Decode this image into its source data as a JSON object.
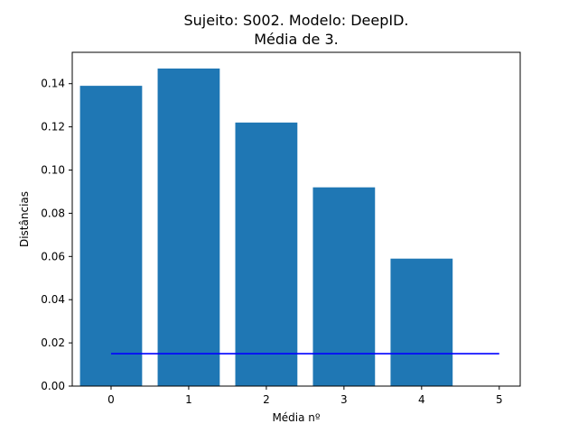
{
  "chart_data": {
    "type": "bar",
    "title_line1": "Sujeito: S002. Modelo: DeepID.",
    "title_line2": "Média de 3.",
    "xlabel": "Média nº",
    "ylabel": "Distâncias",
    "categories": [
      0,
      1,
      2,
      3,
      4
    ],
    "values": [
      0.139,
      0.147,
      0.122,
      0.092,
      0.059
    ],
    "bar_color": "#1f77b4",
    "threshold_line": {
      "x": [
        0,
        5
      ],
      "y": 0.015,
      "color": "#0000ff"
    },
    "xlim": [
      -0.5,
      5.27
    ],
    "ylim": [
      0,
      0.1545
    ],
    "xticks": [
      "0",
      "1",
      "2",
      "3",
      "4",
      "5"
    ],
    "yticks": [
      "0.00",
      "0.02",
      "0.04",
      "0.06",
      "0.08",
      "0.10",
      "0.12",
      "0.14"
    ],
    "grid": false,
    "legend": "none"
  }
}
